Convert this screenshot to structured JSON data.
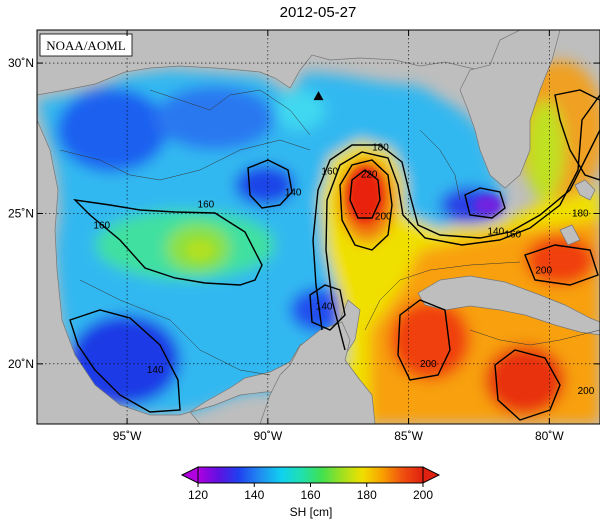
{
  "title": "2012-05-27",
  "credit": "NOAA/AOML",
  "lon_ticks": [
    {
      "lon": -95,
      "label": "95˚W"
    },
    {
      "lon": -90,
      "label": "90˚W"
    },
    {
      "lon": -85,
      "label": "85˚W"
    },
    {
      "lon": -80,
      "label": "80˚W"
    }
  ],
  "lat_ticks": [
    {
      "lat": 30,
      "label": "30˚N"
    },
    {
      "lat": 25,
      "label": "25˚N"
    },
    {
      "lat": 20,
      "label": "20˚N"
    }
  ],
  "extent": {
    "lon": [
      -98.2,
      -78.2
    ],
    "lat": [
      18.0,
      31.1
    ]
  },
  "colorbar": {
    "ticks": [
      "120",
      "140",
      "160",
      "180",
      "200"
    ],
    "range": [
      120,
      200
    ],
    "label": "SH [cm]",
    "colors": [
      "#b000e0",
      "#6010e0",
      "#2040f0",
      "#2090f0",
      "#10d0f0",
      "#20e0b0",
      "#40e050",
      "#a0e020",
      "#f0e000",
      "#f8a000",
      "#f05010",
      "#e02010"
    ]
  },
  "contour_labels": [
    {
      "text": "160",
      "lon": -95.9,
      "lat": 24.6
    },
    {
      "text": "160",
      "lon": -92.2,
      "lat": 25.3
    },
    {
      "text": "140",
      "lon": -89.1,
      "lat": 25.7
    },
    {
      "text": "160",
      "lon": -87.8,
      "lat": 26.4
    },
    {
      "text": "180",
      "lon": -86.0,
      "lat": 27.2
    },
    {
      "text": "220",
      "lon": -86.4,
      "lat": 26.3
    },
    {
      "text": "200",
      "lon": -85.9,
      "lat": 24.9
    },
    {
      "text": "140",
      "lon": -88.0,
      "lat": 21.9
    },
    {
      "text": "140",
      "lon": -94.0,
      "lat": 19.8
    },
    {
      "text": "200",
      "lon": -84.3,
      "lat": 20.0
    },
    {
      "text": "140",
      "lon": -81.9,
      "lat": 24.4
    },
    {
      "text": "160",
      "lon": -81.3,
      "lat": 24.3
    },
    {
      "text": "180",
      "lon": -78.9,
      "lat": 25.0
    },
    {
      "text": "200",
      "lon": -80.2,
      "lat": 23.1
    },
    {
      "text": "200",
      "lon": -78.7,
      "lat": 19.1
    }
  ],
  "station_marker": {
    "lon": -88.2,
    "lat": 28.9
  }
}
